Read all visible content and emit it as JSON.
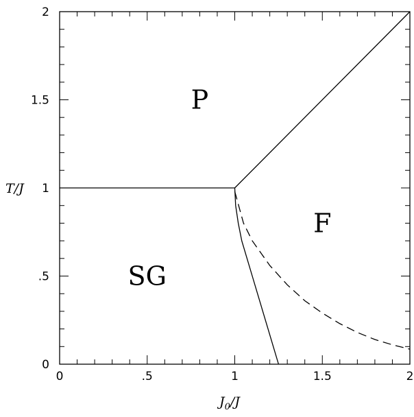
{
  "chart_data": {
    "type": "line",
    "title": "",
    "xlabel": {
      "main": "J",
      "sub": "0",
      "rest": "/J"
    },
    "ylabel": "T/J",
    "xlim": [
      0,
      2
    ],
    "ylim": [
      0,
      2
    ],
    "grid": false,
    "x_ticks": [
      {
        "value": 0,
        "label": "0"
      },
      {
        "value": 0.5,
        "label": ".5"
      },
      {
        "value": 1,
        "label": "1"
      },
      {
        "value": 1.5,
        "label": "1.5"
      },
      {
        "value": 2,
        "label": "2"
      }
    ],
    "y_ticks": [
      {
        "value": 0,
        "label": "0"
      },
      {
        "value": 0.5,
        "label": ".5"
      },
      {
        "value": 1,
        "label": "1"
      },
      {
        "value": 1.5,
        "label": "1.5"
      },
      {
        "value": 2,
        "label": "2"
      }
    ],
    "minor_tick_step": 0.1,
    "series": [
      {
        "style": "solid",
        "x": [
          0,
          1
        ],
        "y": [
          1,
          1
        ]
      },
      {
        "style": "solid",
        "x": [
          1,
          2
        ],
        "y": [
          1,
          2
        ]
      },
      {
        "style": "solid",
        "x": [
          1.0,
          1.005,
          1.02,
          1.04,
          1.07,
          1.1,
          1.13,
          1.16,
          1.19,
          1.22,
          1.25
        ],
        "y": [
          1.0,
          0.9,
          0.8,
          0.7,
          0.6,
          0.5,
          0.4,
          0.3,
          0.2,
          0.1,
          0.0
        ]
      },
      {
        "style": "dashed",
        "x": [
          1.0,
          1.05,
          1.1,
          1.2,
          1.3,
          1.4,
          1.5,
          1.6,
          1.7,
          1.8,
          1.9,
          2.0
        ],
        "y": [
          0.98,
          0.8,
          0.7,
          0.56,
          0.45,
          0.36,
          0.29,
          0.23,
          0.18,
          0.14,
          0.11,
          0.085
        ]
      }
    ],
    "annotations": [
      {
        "text": "P",
        "x": 0.8,
        "y": 1.5
      },
      {
        "text": "F",
        "x": 1.5,
        "y": 0.8
      },
      {
        "text": "SG",
        "x": 0.5,
        "y": 0.5
      }
    ]
  }
}
